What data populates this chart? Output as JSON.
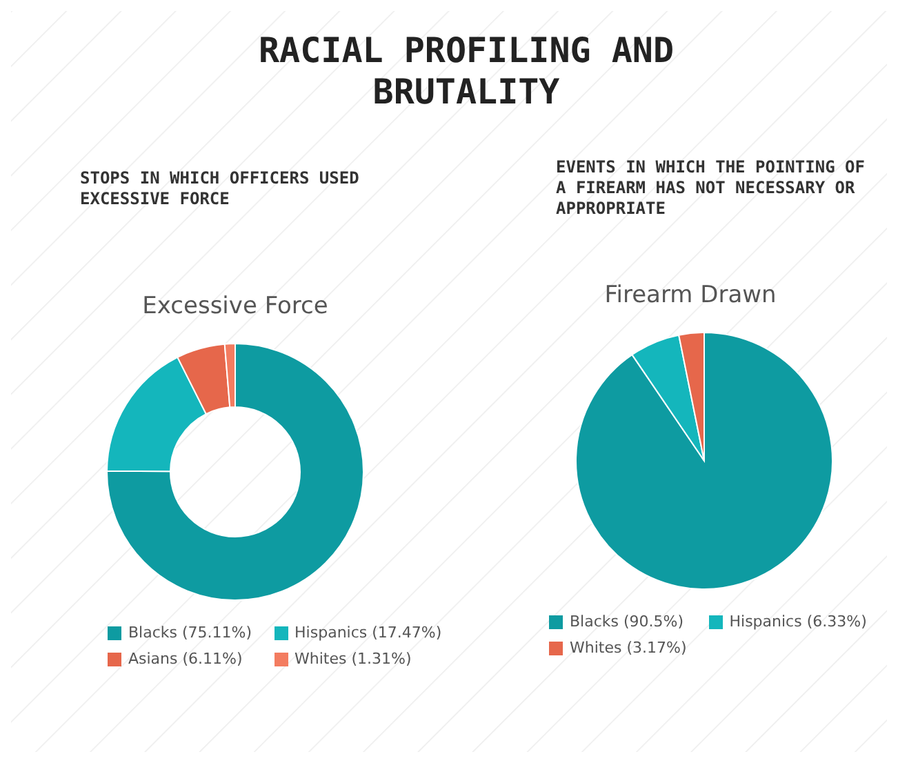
{
  "chart_data": [
    {
      "type": "donut",
      "title": "Excessive Force",
      "subtitle": "STOPS IN WHICH OFFICERS USED EXCESSIVE FORCE",
      "annotations": [
        "RACIAL PROFILING AND BRUTALITY"
      ],
      "categories": [
        "Blacks",
        "Hispanics",
        "Asians",
        "Whites"
      ],
      "values": [
        75.11,
        17.47,
        6.11,
        1.31
      ],
      "value_labels": [
        "(75.11%)",
        "(17.47%)",
        "(6.11%)",
        "(1.31%)"
      ],
      "colors": [
        "#0e9ba1",
        "#14b6bc",
        "#e6674b",
        "#f37c60"
      ],
      "legend": "bottom"
    },
    {
      "type": "pie",
      "title": "Firearm Drawn",
      "subtitle": "EVENTS IN WHICH THE POINTING OF A FIREARM HAS NOT NECESSARY OR APPROPRIATE",
      "categories": [
        "Blacks",
        "Hispanics",
        "Whites"
      ],
      "values": [
        90.5,
        6.33,
        3.17
      ],
      "value_labels": [
        "(90.5%)",
        "(6.33%)",
        "(3.17%)"
      ],
      "colors": [
        "#0e9ba1",
        "#14b6bc",
        "#e6674b"
      ],
      "legend": "bottom"
    }
  ]
}
